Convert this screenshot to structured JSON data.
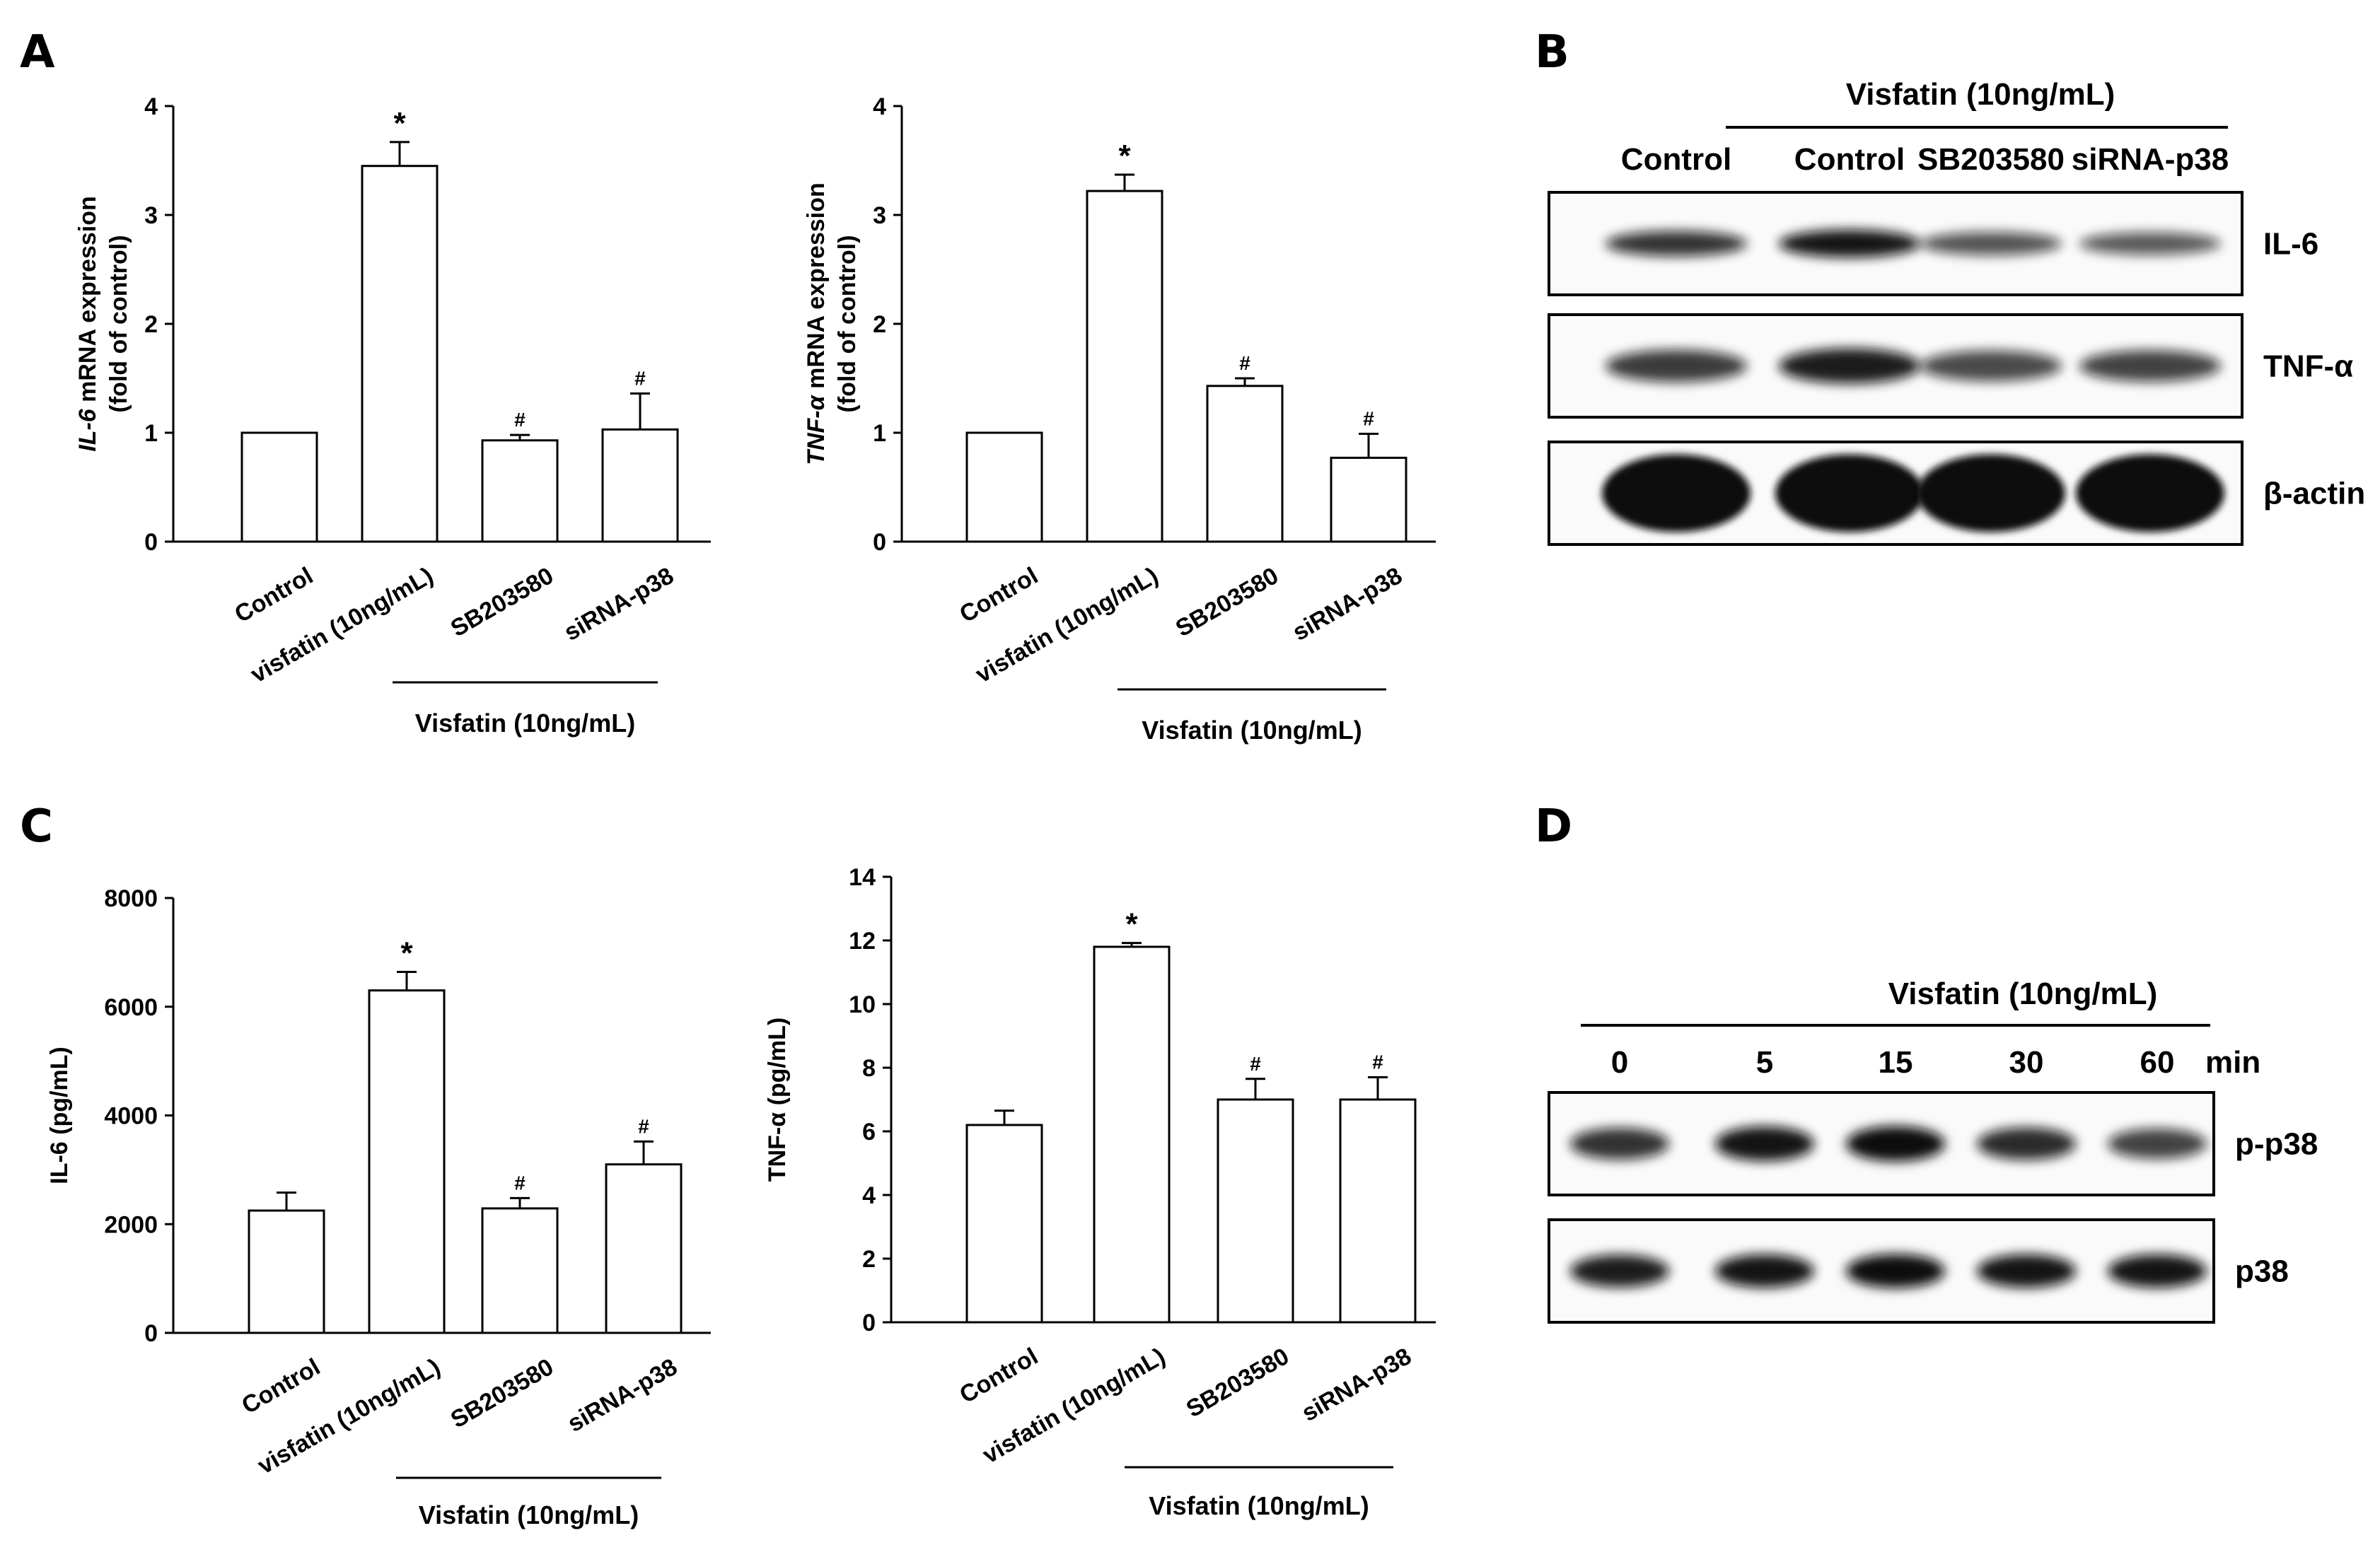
{
  "panels": {
    "A": "A",
    "B": "B",
    "C": "C",
    "D": "D"
  },
  "chart_data": [
    {
      "type": "bar",
      "panel": "A",
      "categories": [
        "Control",
        "visfatin (10ng/mL)",
        "SB203580",
        "siRNA-p38"
      ],
      "values": [
        1.0,
        3.45,
        0.93,
        1.03
      ],
      "errors": [
        0,
        0.22,
        0.05,
        0.33
      ],
      "significance": [
        "",
        "*",
        "#",
        "#"
      ],
      "ylabel_italic": "IL-6",
      "ylabel_rest": " mRNA expression",
      "ylabel_line2": "(fold of control)",
      "ylim": [
        0,
        4
      ],
      "yticks": [
        "0",
        "1",
        "2",
        "3",
        "4"
      ],
      "group_label": "Visfatin (10ng/mL)"
    },
    {
      "type": "bar",
      "panel": "A",
      "categories": [
        "Control",
        "visfatin (10ng/mL)",
        "SB203580",
        "siRNA-p38"
      ],
      "values": [
        1.0,
        3.22,
        1.43,
        0.77
      ],
      "errors": [
        0,
        0.15,
        0.07,
        0.22
      ],
      "significance": [
        "",
        "*",
        "#",
        "#"
      ],
      "ylabel_italic": "TNF-α",
      "ylabel_rest": " mRNA expression",
      "ylabel_line2": "(fold of control)",
      "ylim": [
        0,
        4
      ],
      "yticks": [
        "0",
        "1",
        "2",
        "3",
        "4"
      ],
      "group_label": "Visfatin (10ng/mL)"
    },
    {
      "type": "bar",
      "panel": "C",
      "categories": [
        "Control",
        "visfatin (10ng/mL)",
        "SB203580",
        "siRNA-p38"
      ],
      "values": [
        2250,
        6300,
        2290,
        3100
      ],
      "errors": [
        330,
        340,
        190,
        420
      ],
      "significance": [
        "",
        "*",
        "#",
        "#"
      ],
      "ylabel": "IL-6 (pg/mL)",
      "ylim": [
        0,
        8000
      ],
      "yticks": [
        "0",
        "2000",
        "4000",
        "6000",
        "8000"
      ],
      "group_label": "Visfatin (10ng/mL)"
    },
    {
      "type": "bar",
      "panel": "C",
      "categories": [
        "Control",
        "visfatin (10ng/mL)",
        "SB203580",
        "siRNA-p38"
      ],
      "values": [
        6.2,
        11.8,
        7.0,
        7.0
      ],
      "errors": [
        0.45,
        0.12,
        0.65,
        0.7
      ],
      "significance": [
        "",
        "*",
        "#",
        "#"
      ],
      "ylabel": "TNF-α (pg/mL)",
      "ylim": [
        0,
        14
      ],
      "yticks": [
        "0",
        "2",
        "4",
        "6",
        "8",
        "10",
        "12",
        "14"
      ],
      "group_label": "Visfatin (10ng/mL)"
    }
  ],
  "blot_B": {
    "header": "Visfatin (10ng/mL)",
    "lanes": [
      "Control",
      "Control",
      "SB203580",
      "siRNA-p38"
    ],
    "rows": [
      {
        "label": "IL-6",
        "intensity": [
          0.75,
          0.95,
          0.55,
          0.5
        ]
      },
      {
        "label": "TNF-α",
        "intensity": [
          0.7,
          0.9,
          0.6,
          0.65
        ]
      },
      {
        "label": "β-actin",
        "intensity": [
          1.0,
          1.0,
          1.0,
          1.0
        ]
      }
    ]
  },
  "blot_D": {
    "header": "Visfatin (10ng/mL)",
    "lanes": [
      "0",
      "5",
      "15",
      "30",
      "60"
    ],
    "unit": "min",
    "rows": [
      {
        "label": "p-p38",
        "intensity": [
          0.75,
          0.95,
          1.0,
          0.8,
          0.65
        ]
      },
      {
        "label": "p38",
        "intensity": [
          0.9,
          0.95,
          1.0,
          0.95,
          0.95
        ]
      }
    ]
  },
  "colors": {
    "bar_fill": "#ffffff",
    "stroke": "#000000",
    "band": "#111111"
  }
}
